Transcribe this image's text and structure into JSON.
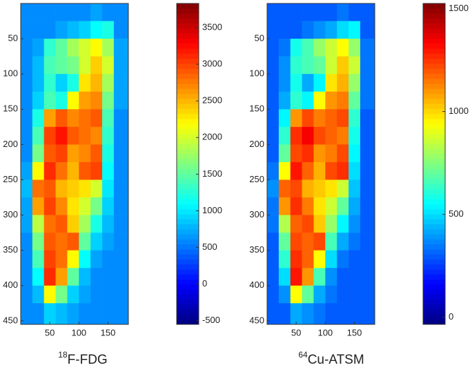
{
  "chart_data": [
    {
      "type": "heatmap",
      "caption_sup": "18",
      "caption": "F-FDG",
      "xlim": [
        0,
        185
      ],
      "ylim": [
        455,
        0
      ],
      "xticks": [
        50,
        100,
        150
      ],
      "yticks": [
        50,
        100,
        150,
        200,
        250,
        300,
        350,
        400,
        450
      ],
      "clim": [
        -550,
        3830
      ],
      "cticks": [
        -500,
        0,
        500,
        1000,
        1500,
        2000,
        2500,
        3000,
        3500
      ],
      "colormap": "jet",
      "x_edges": [
        0,
        20,
        40,
        60,
        80,
        100,
        120,
        140,
        160,
        185
      ],
      "y_edges": [
        0,
        25,
        50,
        75,
        100,
        125,
        150,
        175,
        200,
        225,
        250,
        275,
        300,
        325,
        350,
        375,
        400,
        425,
        455
      ],
      "z": [
        [
          600,
          600,
          600,
          600,
          600,
          600,
          700,
          600,
          600
        ],
        [
          600,
          600,
          600,
          700,
          800,
          900,
          1100,
          1200,
          600
        ],
        [
          600,
          700,
          1300,
          1500,
          1800,
          2000,
          2200,
          1800,
          700
        ],
        [
          600,
          800,
          1400,
          1500,
          1600,
          2000,
          2400,
          2000,
          700
        ],
        [
          600,
          800,
          1300,
          900,
          1200,
          2300,
          2500,
          1800,
          700
        ],
        [
          600,
          900,
          1400,
          1200,
          2200,
          2600,
          2700,
          1600,
          700
        ],
        [
          600,
          1200,
          2600,
          2900,
          2700,
          2800,
          2900,
          1400,
          600
        ],
        [
          600,
          1400,
          3000,
          3200,
          2900,
          2800,
          2700,
          1300,
          600
        ],
        [
          600,
          1600,
          2900,
          3000,
          2600,
          2700,
          2900,
          1200,
          600
        ],
        [
          700,
          2200,
          3100,
          2800,
          2500,
          2900,
          3000,
          1100,
          600
        ],
        [
          800,
          2800,
          2900,
          2500,
          2400,
          2300,
          2000,
          1000,
          600
        ],
        [
          700,
          2600,
          3000,
          2700,
          2300,
          2000,
          1600,
          900,
          600
        ],
        [
          700,
          1900,
          2800,
          2900,
          2400,
          1800,
          1200,
          800,
          600
        ],
        [
          600,
          1600,
          2900,
          2800,
          2900,
          1500,
          900,
          700,
          600
        ],
        [
          600,
          1400,
          3000,
          2800,
          2200,
          1100,
          700,
          600,
          600
        ],
        [
          600,
          1100,
          3100,
          2600,
          1500,
          800,
          600,
          600,
          600
        ],
        [
          600,
          800,
          2200,
          1600,
          900,
          700,
          600,
          600,
          600
        ],
        [
          600,
          600,
          900,
          800,
          700,
          600,
          600,
          600,
          600
        ]
      ]
    },
    {
      "type": "heatmap",
      "caption_sup": "64",
      "caption": "Cu-ATSM",
      "xlim": [
        0,
        185
      ],
      "ylim": [
        455,
        0
      ],
      "xticks": [
        50,
        100,
        150
      ],
      "yticks": [
        50,
        100,
        150,
        200,
        250,
        300,
        350,
        400,
        450
      ],
      "clim": [
        -35,
        1525
      ],
      "cticks": [
        0,
        500,
        1000,
        1500
      ],
      "colormap": "jet",
      "x_edges": [
        0,
        20,
        40,
        60,
        80,
        100,
        120,
        140,
        160,
        185
      ],
      "y_edges": [
        0,
        25,
        50,
        75,
        100,
        125,
        150,
        175,
        200,
        225,
        250,
        275,
        300,
        325,
        350,
        375,
        400,
        425,
        455
      ],
      "z": [
        [
          300,
          300,
          300,
          300,
          300,
          300,
          340,
          300,
          300
        ],
        [
          300,
          300,
          300,
          340,
          380,
          420,
          500,
          540,
          300
        ],
        [
          300,
          340,
          580,
          660,
          780,
          860,
          940,
          780,
          340
        ],
        [
          300,
          380,
          620,
          660,
          700,
          860,
          1020,
          860,
          340
        ],
        [
          300,
          380,
          580,
          420,
          540,
          980,
          1060,
          780,
          340
        ],
        [
          300,
          420,
          620,
          540,
          940,
          1100,
          1140,
          700,
          340
        ],
        [
          300,
          540,
          1100,
          1220,
          1140,
          1180,
          1220,
          620,
          300
        ],
        [
          300,
          620,
          1260,
          1340,
          1220,
          1180,
          1140,
          580,
          300
        ],
        [
          300,
          700,
          1220,
          1260,
          1100,
          1140,
          1220,
          540,
          300
        ],
        [
          340,
          940,
          1300,
          1180,
          1060,
          1220,
          1260,
          500,
          300
        ],
        [
          380,
          1180,
          1220,
          1060,
          1020,
          980,
          860,
          460,
          300
        ],
        [
          340,
          1100,
          1260,
          1140,
          980,
          860,
          700,
          420,
          300
        ],
        [
          340,
          820,
          1180,
          1220,
          1020,
          780,
          540,
          380,
          300
        ],
        [
          300,
          700,
          1220,
          1180,
          1220,
          660,
          420,
          340,
          300
        ],
        [
          300,
          620,
          1260,
          1180,
          940,
          500,
          340,
          300,
          300
        ],
        [
          300,
          500,
          1300,
          1100,
          660,
          380,
          300,
          300,
          300
        ],
        [
          300,
          380,
          940,
          700,
          420,
          340,
          300,
          300,
          300
        ],
        [
          300,
          300,
          420,
          380,
          340,
          300,
          300,
          300,
          300
        ]
      ]
    }
  ]
}
